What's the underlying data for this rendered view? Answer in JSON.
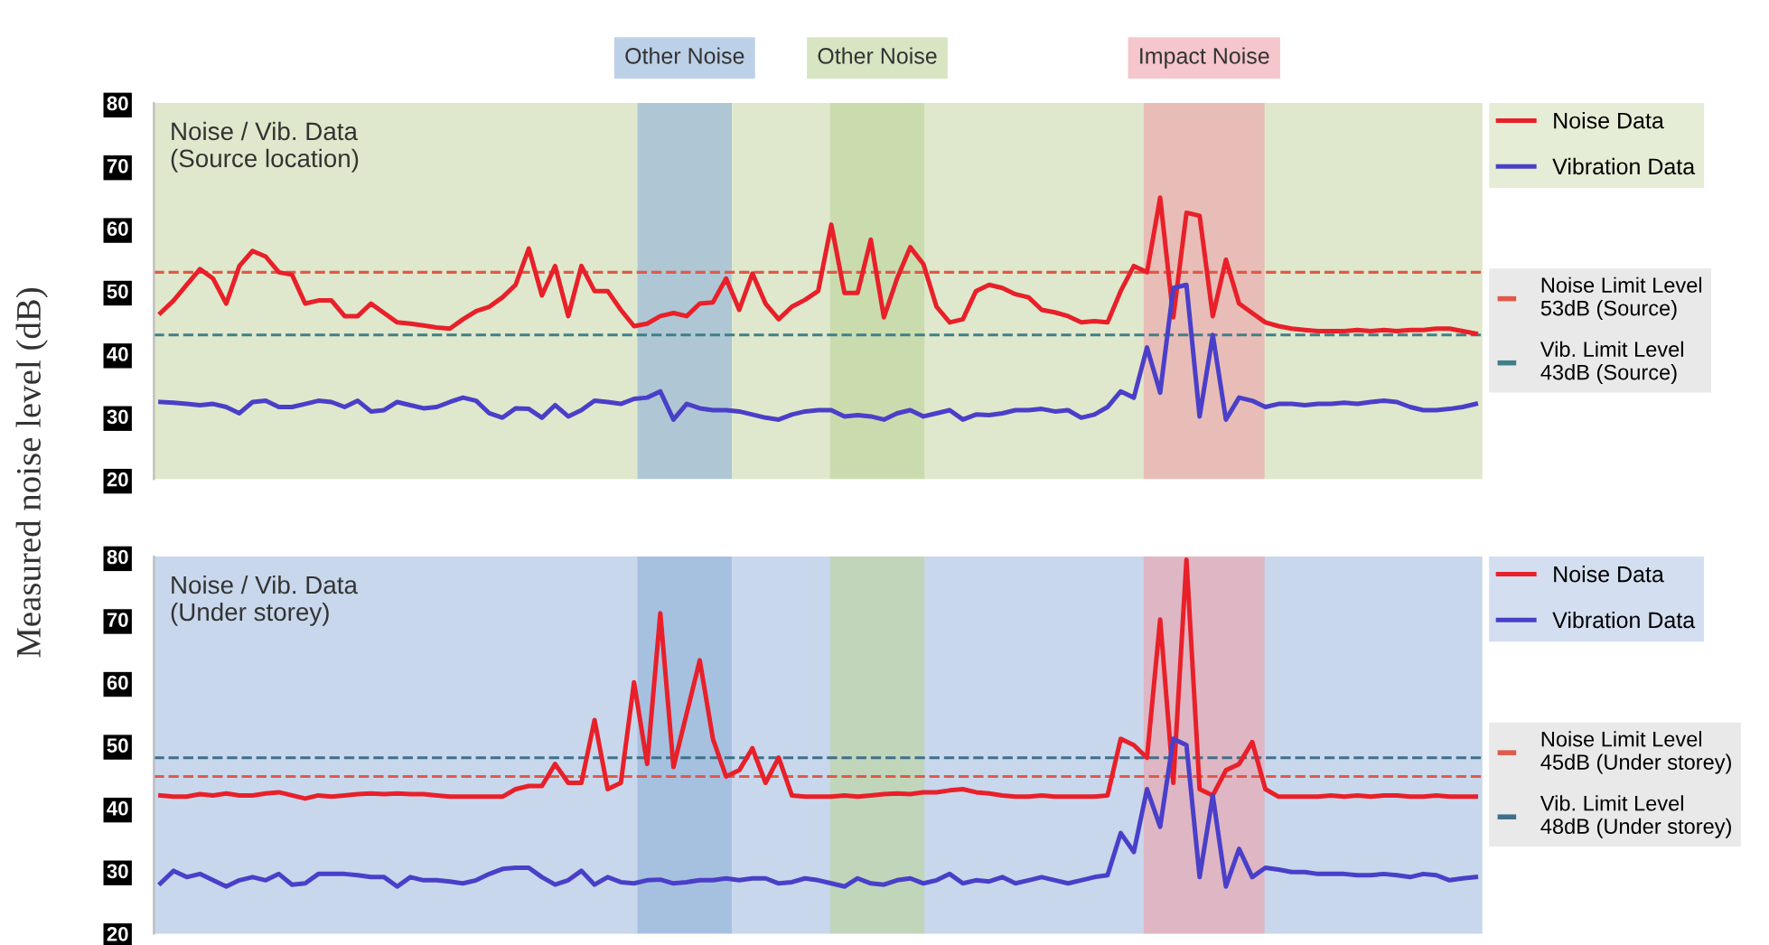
{
  "chart_data": [
    {
      "type": "line",
      "ylabel": "Measured noise level (dB)",
      "annotations": [
        "Noise / Vib. Data\n(Source location)",
        "Other Noise",
        "Other Noise",
        "Impact Noise"
      ],
      "categories": [
        null,
        null,
        null,
        null,
        null,
        null,
        null,
        null,
        null,
        null,
        null,
        null,
        null,
        null,
        null,
        null,
        null,
        null,
        null,
        null,
        null,
        null,
        null,
        null,
        null,
        null,
        null,
        null,
        null,
        null,
        null,
        null,
        null,
        null,
        null,
        null,
        null,
        null,
        null,
        null,
        null,
        null,
        null,
        null,
        null,
        null,
        null,
        null,
        null,
        null,
        null,
        null,
        null,
        null,
        null,
        null,
        null,
        null,
        null,
        null,
        null,
        null,
        null,
        null,
        null,
        null,
        null,
        null,
        null,
        null,
        null,
        null,
        null,
        null,
        null,
        null,
        null,
        null,
        null,
        null,
        null,
        null,
        null,
        null,
        null,
        null,
        null,
        null,
        null,
        null,
        null,
        null,
        null,
        null,
        null,
        null,
        null,
        null,
        null,
        null,
        null
      ],
      "series": [
        {
          "name": "Noise Data",
          "color": "#e8202a",
          "values": [
            46.5,
            48.5,
            51,
            53.5,
            52,
            48,
            54,
            56.4,
            55.5,
            53,
            52.6,
            48,
            48.5,
            48.5,
            46,
            46,
            48,
            46.5,
            45,
            44.8,
            44.5,
            44.2,
            44,
            45.5,
            46.8,
            47.5,
            49,
            51,
            56.8,
            49.3,
            54,
            46,
            54,
            50,
            50,
            47,
            44.4,
            44.8,
            46,
            46.5,
            46,
            48,
            48.2,
            52,
            47,
            52.8,
            48,
            45.5,
            47.5,
            48.6,
            50,
            60.6,
            49.7,
            49.7,
            58.2,
            45.8,
            52,
            57,
            54.3,
            47.5,
            45,
            45.5,
            50,
            51,
            50.5,
            49.5,
            49,
            47,
            46.6,
            46,
            45,
            45.2,
            45,
            50,
            54,
            53,
            64.9,
            45.8,
            62.5,
            62,
            46,
            55,
            48,
            46.5,
            45,
            44.4,
            44,
            43.8,
            43.6,
            43.6,
            43.6,
            43.8,
            43.6,
            43.8,
            43.6,
            43.8,
            43.8,
            44,
            44,
            43.6,
            43.2
          ]
        },
        {
          "name": "Vibration Data",
          "color": "#4a3fc8",
          "values": [
            32.3,
            32.2,
            32,
            31.8,
            32,
            31.5,
            30.5,
            32.3,
            32.5,
            31.5,
            31.5,
            32,
            32.5,
            32.3,
            31.5,
            32.5,
            30.8,
            31,
            32.3,
            31.8,
            31.3,
            31.5,
            32.3,
            33,
            32.5,
            30.5,
            29.8,
            31.3,
            31.2,
            29.8,
            31.8,
            30,
            31,
            32.5,
            32.3,
            32,
            32.8,
            33,
            34,
            29.5,
            32,
            31.3,
            31,
            31,
            30.8,
            30.3,
            29.8,
            29.5,
            30.3,
            30.8,
            31,
            31,
            30,
            30.2,
            30,
            29.5,
            30.5,
            31,
            30,
            30.5,
            31,
            29.5,
            30.3,
            30.2,
            30.5,
            31,
            31,
            31.2,
            30.8,
            31,
            29.8,
            30.3,
            31.5,
            34,
            33,
            41,
            33.8,
            50.5,
            51,
            30,
            43,
            29.5,
            33,
            32.5,
            31.5,
            32,
            32,
            31.8,
            32,
            32,
            32.2,
            32,
            32.3,
            32.5,
            32.3,
            31.5,
            31,
            31,
            31.2,
            31.5,
            32
          ]
        }
      ],
      "ref_lines": [
        {
          "axis": "y",
          "value": 53,
          "label": "Noise Limit Level\n53dB (Source)",
          "color": "#e05a4a",
          "line_style": "dashed"
        },
        {
          "axis": "y",
          "value": 43,
          "label": "Vib. Limit Level\n43dB (Source)",
          "color": "#3f7f8a",
          "line_style": "dashed"
        }
      ],
      "ylim": [
        20,
        80
      ],
      "yticks": [
        20,
        30,
        40,
        50,
        60,
        70,
        80
      ],
      "grid": false,
      "legend": "right",
      "marker": "none",
      "line_style": "solid"
    },
    {
      "type": "line",
      "annotations": [
        "Noise / Vib. Data\n(Under storey)"
      ],
      "categories": [
        null,
        null,
        null,
        null,
        null,
        null,
        null,
        null,
        null,
        null,
        null,
        null,
        null,
        null,
        null,
        null,
        null,
        null,
        null,
        null,
        null,
        null,
        null,
        null,
        null,
        null,
        null,
        null,
        null,
        null,
        null,
        null,
        null,
        null,
        null,
        null,
        null,
        null,
        null,
        null,
        null,
        null,
        null,
        null,
        null,
        null,
        null,
        null,
        null,
        null,
        null,
        null,
        null,
        null,
        null,
        null,
        null,
        null,
        null,
        null,
        null,
        null,
        null,
        null,
        null,
        null,
        null,
        null,
        null,
        null,
        null,
        null,
        null,
        null,
        null,
        null,
        null,
        null,
        null,
        null,
        null,
        null,
        null,
        null,
        null,
        null,
        null,
        null,
        null,
        null,
        null,
        null,
        null,
        null,
        null,
        null,
        null,
        null,
        null,
        null,
        null
      ],
      "series": [
        {
          "name": "Noise Data",
          "color": "#e8202a",
          "values": [
            42,
            41.8,
            41.8,
            42.2,
            42,
            42.3,
            42,
            42,
            42.3,
            42.5,
            42,
            41.5,
            42,
            41.8,
            42,
            42.2,
            42.3,
            42.2,
            42.3,
            42.2,
            42.2,
            42,
            41.8,
            41.8,
            41.8,
            41.8,
            41.8,
            43,
            43.5,
            43.5,
            47,
            44,
            44,
            54,
            43,
            44,
            60,
            47,
            71,
            46.5,
            55,
            63.5,
            51,
            45,
            46,
            49.5,
            44,
            48,
            42,
            41.8,
            41.8,
            41.8,
            42,
            41.8,
            42,
            42.2,
            42.3,
            42.2,
            42.5,
            42.5,
            42.8,
            43,
            42.5,
            42.3,
            42,
            41.8,
            41.8,
            42,
            41.8,
            41.8,
            41.8,
            41.8,
            42,
            51,
            50,
            48,
            70,
            44,
            79.5,
            43,
            42,
            46,
            47,
            50.5,
            43,
            41.8,
            41.8,
            41.8,
            41.8,
            42,
            41.8,
            42,
            41.8,
            42,
            42,
            41.8,
            41.8,
            42,
            41.8,
            41.8,
            41.8
          ]
        },
        {
          "name": "Vibration Data",
          "color": "#4a3fc8",
          "values": [
            28,
            30,
            29,
            29.5,
            28.5,
            27.5,
            28.5,
            29,
            28.5,
            29.5,
            27.8,
            28,
            29.5,
            29.5,
            29.5,
            29.3,
            29,
            29,
            27.5,
            29,
            28.5,
            28.5,
            28.3,
            28,
            28.5,
            29.5,
            30.3,
            30.5,
            30.5,
            29,
            27.8,
            28.5,
            30,
            27.8,
            29,
            28.2,
            28,
            28.5,
            28.6,
            28,
            28.2,
            28.5,
            28.5,
            28.8,
            28.5,
            28.8,
            28.8,
            28,
            28.2,
            28.8,
            28.5,
            28,
            27.5,
            28.8,
            28,
            27.8,
            28.5,
            28.8,
            28,
            28.5,
            29.5,
            28,
            28.5,
            28.3,
            29,
            28,
            28.5,
            29,
            28.5,
            28,
            28.5,
            29,
            29.3,
            36,
            33,
            43,
            37,
            51,
            50,
            29,
            42,
            27.5,
            33.5,
            29,
            30.5,
            30.2,
            29.8,
            29.8,
            29.5,
            29.5,
            29.5,
            29.3,
            29.3,
            29.5,
            29.3,
            29,
            29.5,
            29.3,
            28.5,
            28.8,
            29
          ]
        }
      ],
      "ref_lines": [
        {
          "axis": "y",
          "value": 45,
          "label": "Noise Limit Level\n45dB (Under storey)",
          "color": "#e05a4a",
          "line_style": "dashed"
        },
        {
          "axis": "y",
          "value": 48,
          "label": "Vib. Limit Level\n48dB (Under storey)",
          "color": "#3f6f8a",
          "line_style": "dashed"
        }
      ],
      "ylim": [
        20,
        80
      ],
      "yticks": [
        20,
        30,
        40,
        50,
        60,
        70,
        80
      ],
      "grid": false,
      "legend": "right",
      "marker": "none",
      "line_style": "solid"
    }
  ]
}
